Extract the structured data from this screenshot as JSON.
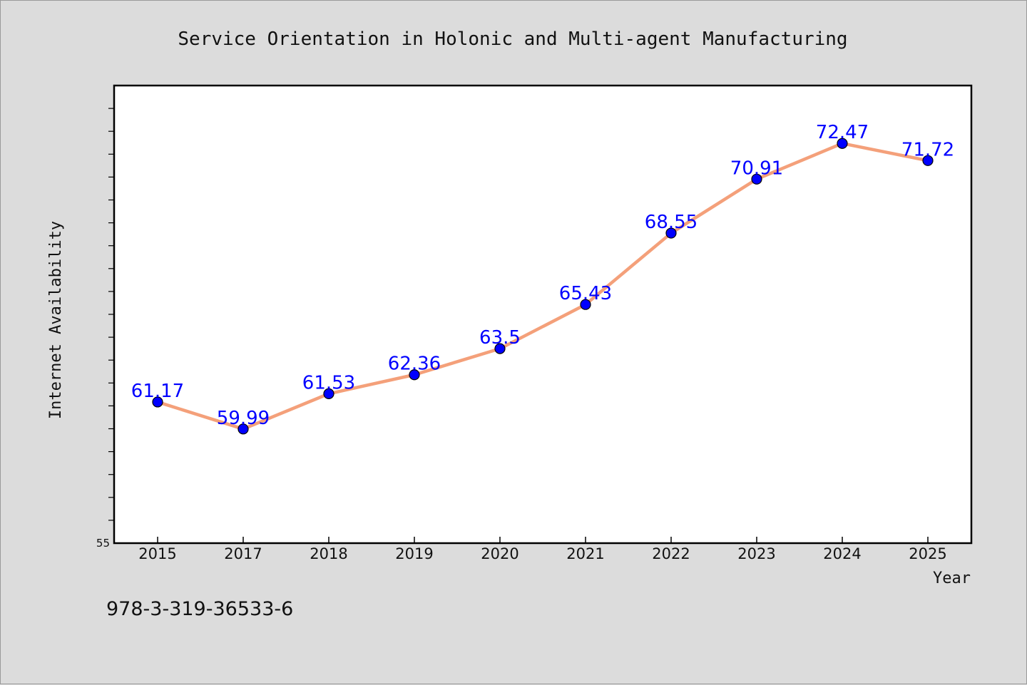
{
  "chart_data": {
    "type": "line",
    "title": "Service Orientation in Holonic and Multi-agent Manufacturing",
    "xlabel": "Year",
    "ylabel": "Internet Availability",
    "categories": [
      "2015",
      "2017",
      "2018",
      "2019",
      "2020",
      "2021",
      "2022",
      "2023",
      "2024",
      "2025"
    ],
    "series": [
      {
        "values": [
          61.17,
          59.99,
          61.53,
          62.36,
          63.5,
          65.43,
          68.55,
          70.91,
          72.47,
          71.72
        ],
        "labels": [
          "61.17",
          "59.99",
          "61.53",
          "62.36",
          "63.5",
          "65.43",
          "68.55",
          "70.91",
          "72.47",
          "71.72"
        ],
        "line_color": "#f4a07a",
        "marker_color": "#0000ff"
      }
    ],
    "ylim": [
      55,
      75
    ],
    "y_tick_label_min": "55",
    "grid": false,
    "legend": "none"
  },
  "caption": "978-3-319-36533-6",
  "colors": {
    "background": "#dcdcdc",
    "plot_background": "#ffffff",
    "line": "#f4a07a",
    "marker": "#0000ff",
    "data_label": "#0000ff"
  }
}
